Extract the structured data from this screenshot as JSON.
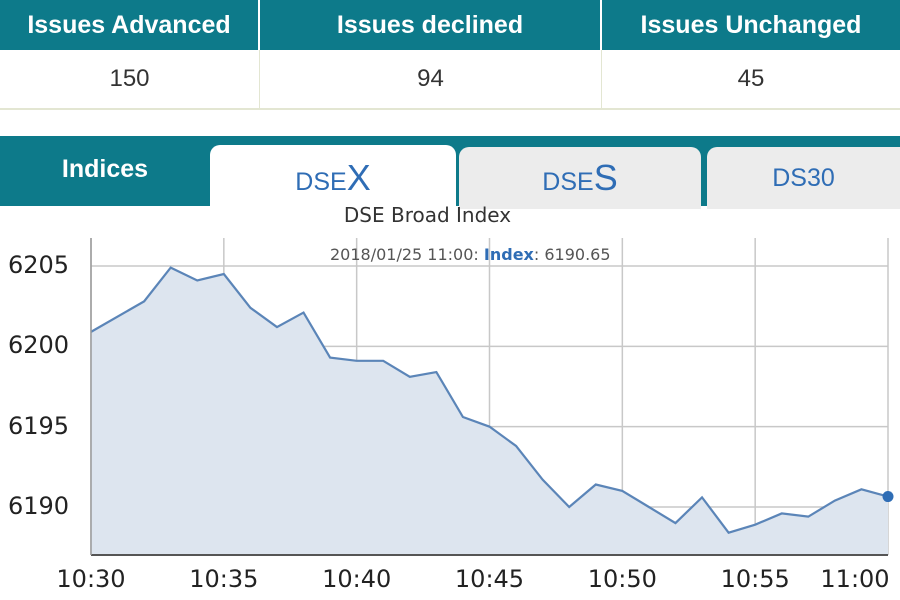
{
  "summary": {
    "headers": [
      "Issues Advanced",
      "Issues declined",
      "Issues Unchanged"
    ],
    "values": [
      "150",
      "94",
      "45"
    ]
  },
  "tabs": {
    "section_label": "Indices",
    "dsex": {
      "prefix": "DSE",
      "big": "X"
    },
    "dses": {
      "prefix": "DSE",
      "big": "S"
    },
    "ds30": {
      "label": "DS30"
    }
  },
  "tooltip": {
    "datetime": "2018/01/25 11:00:",
    "label": "Index",
    "value": ": 6190.65"
  },
  "colors": {
    "header_teal": "#0d7a8a",
    "line_blue": "#5b85b8",
    "area_fill": "#dde5ef",
    "tab_text_blue": "#2f6db5"
  },
  "chart_data": {
    "type": "area",
    "title": "DSE Broad Index",
    "xlabel": "",
    "ylabel": "",
    "x_ticks": [
      "10:30",
      "10:35",
      "10:40",
      "10:45",
      "10:50",
      "10:55",
      "11:00"
    ],
    "y_ticks": [
      "6205",
      "6200",
      "6195",
      "6190"
    ],
    "ylim": [
      6187,
      6207
    ],
    "xlim_minutes": [
      0,
      30
    ],
    "grid": true,
    "series": [
      {
        "x": [
          0,
          2,
          3,
          4,
          5,
          6,
          7,
          8,
          9,
          10,
          11,
          12,
          13,
          14,
          15,
          16,
          17,
          18,
          19,
          20,
          21,
          22,
          23,
          24,
          25,
          26,
          27,
          28,
          29,
          30
        ],
        "y": [
          6200.9,
          6202.8,
          6204.9,
          6204.1,
          6204.5,
          6202.4,
          6201.2,
          6202.1,
          6199.3,
          6199.1,
          6199.1,
          6198.1,
          6198.4,
          6195.6,
          6195.0,
          6193.8,
          6191.7,
          6190.0,
          6191.4,
          6191.0,
          6190.0,
          6189.0,
          6190.6,
          6188.4,
          6188.9,
          6189.6,
          6189.4,
          6190.4,
          6191.1,
          6190.65
        ]
      }
    ],
    "last_point_marker": true
  }
}
